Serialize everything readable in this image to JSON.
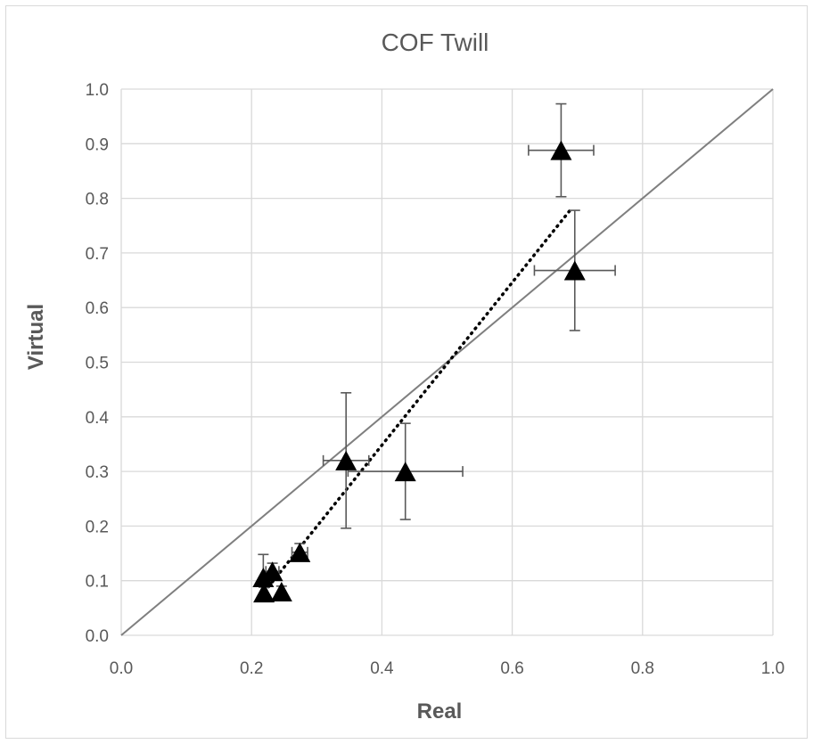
{
  "chart_data": {
    "type": "scatter",
    "title": "COF Twill",
    "xlabel": "Real",
    "ylabel": "Virtual",
    "xlim": [
      0.0,
      1.0
    ],
    "ylim": [
      0.0,
      1.0
    ],
    "x_ticks": [
      "0.0",
      "0.2",
      "0.4",
      "0.6",
      "0.8",
      "1.0"
    ],
    "y_ticks": [
      "0.0",
      "0.1",
      "0.2",
      "0.3",
      "0.4",
      "0.5",
      "0.6",
      "0.7",
      "0.8",
      "0.9",
      "1.0"
    ],
    "grid": true,
    "legend": "none",
    "colors": {
      "marker": "#000000",
      "error_bar": "#595959",
      "identity_line": "#7f7f7f",
      "grid": "#d9d9d9",
      "text": "#595959"
    },
    "points": [
      {
        "x": 0.675,
        "y": 0.888,
        "x_err": 0.05,
        "y_err": 0.085
      },
      {
        "x": 0.696,
        "y": 0.668,
        "x_err": 0.062,
        "y_err": 0.11
      },
      {
        "x": 0.345,
        "y": 0.32,
        "x_err": 0.035,
        "y_err": 0.124
      },
      {
        "x": 0.436,
        "y": 0.3,
        "x_err": 0.088,
        "y_err": 0.088
      },
      {
        "x": 0.274,
        "y": 0.152,
        "x_err": 0.012,
        "y_err": 0.016
      },
      {
        "x": 0.232,
        "y": 0.117,
        "x_err": 0.01,
        "y_err": 0.015
      },
      {
        "x": 0.218,
        "y": 0.106,
        "x_err": 0.0,
        "y_err": 0.042
      },
      {
        "x": 0.246,
        "y": 0.08,
        "x_err": 0.0,
        "y_err": 0.01
      },
      {
        "x": 0.219,
        "y": 0.078,
        "x_err": 0.0,
        "y_err": 0.01
      }
    ],
    "trendline": {
      "style": "dotted",
      "x": [
        0.22,
        0.69
      ],
      "y": [
        0.08,
        0.78
      ]
    },
    "identity_line": {
      "x": [
        0.0,
        1.0
      ],
      "y": [
        0.0,
        1.0
      ]
    }
  }
}
